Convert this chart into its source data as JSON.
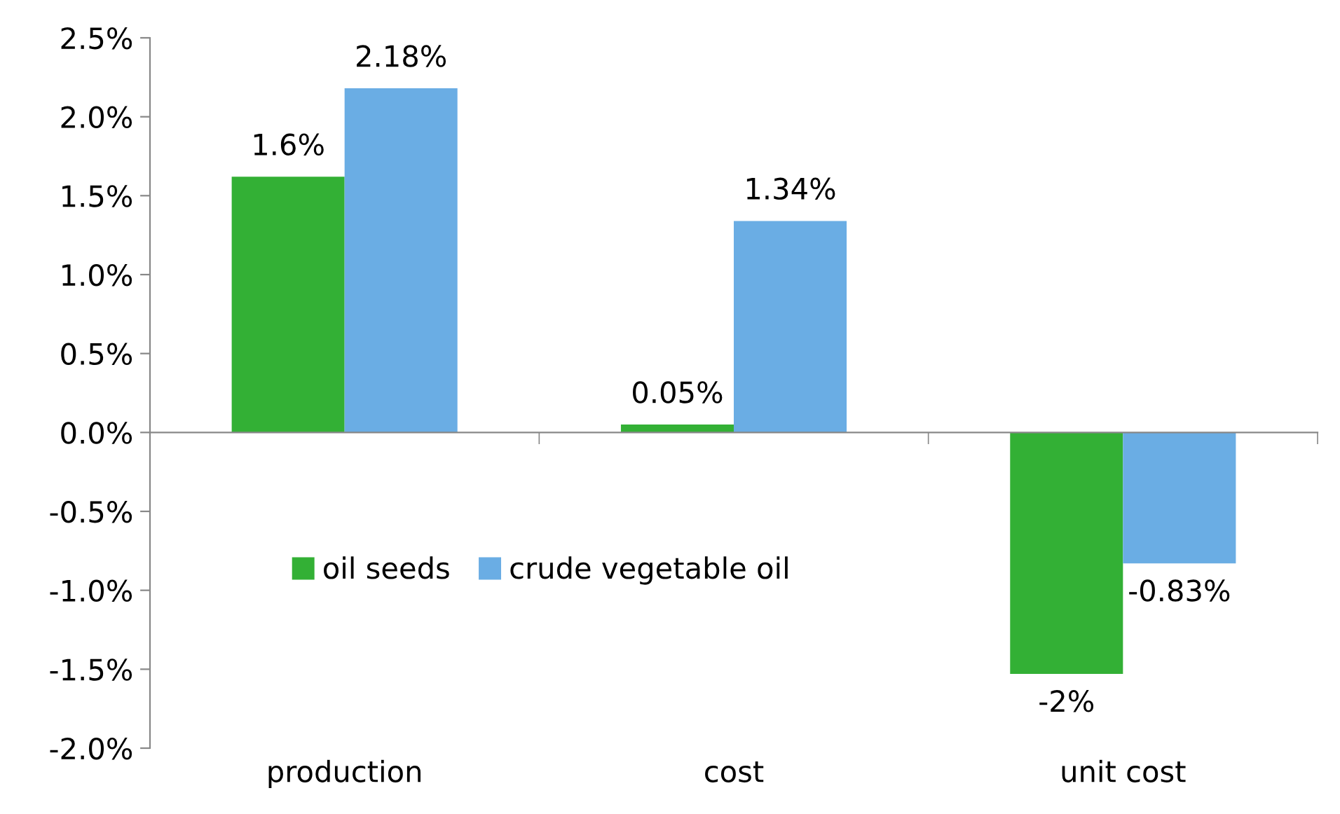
{
  "chart_data": {
    "type": "bar",
    "categories": [
      "production",
      "cost",
      "unit cost"
    ],
    "series": [
      {
        "name": "oil seeds",
        "color": "#33b035",
        "values": [
          1.62,
          0.05,
          -1.53
        ],
        "value_labels": [
          "1.6%",
          "0.05%",
          "-2%"
        ]
      },
      {
        "name": "crude vegetable oil",
        "color": "#6aade4",
        "values": [
          2.18,
          1.34,
          -0.83
        ],
        "value_labels": [
          "2.18%",
          "1.34%",
          "-0.83%"
        ]
      }
    ],
    "ylim": [
      -2.0,
      2.5
    ],
    "yticks": [
      {
        "value": -2.0,
        "label": "-2.0%"
      },
      {
        "value": -1.5,
        "label": "-1.5%"
      },
      {
        "value": -1.0,
        "label": "-1.0%"
      },
      {
        "value": -0.5,
        "label": "-0.5%"
      },
      {
        "value": 0.0,
        "label": "0.0%"
      },
      {
        "value": 0.5,
        "label": "0.5%"
      },
      {
        "value": 1.0,
        "label": "1.0%"
      },
      {
        "value": 1.5,
        "label": "1.5%"
      },
      {
        "value": 2.0,
        "label": "2.0%"
      },
      {
        "value": 2.5,
        "label": "2.5%"
      }
    ],
    "legend": "left"
  }
}
